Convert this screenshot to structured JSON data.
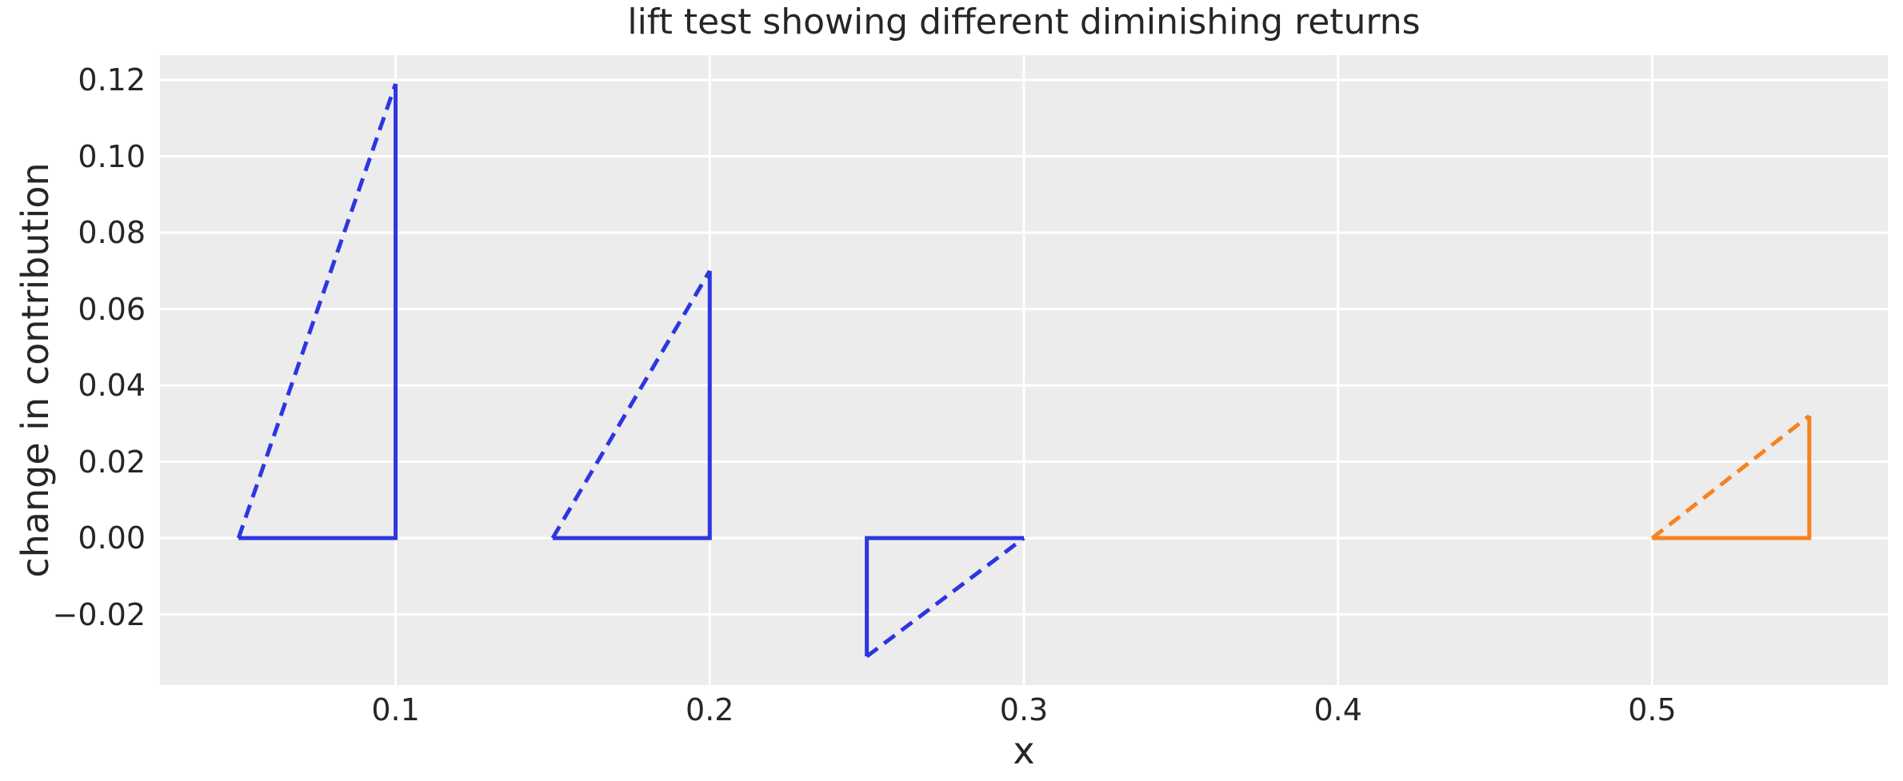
{
  "chart_data": {
    "type": "line",
    "title": "lift test showing different diminishing returns",
    "xlabel": "x",
    "ylabel": "change in contribution",
    "xlim": [
      0.025,
      0.575
    ],
    "ylim": [
      -0.0385,
      0.1265
    ],
    "x_ticks": [
      0.1,
      0.2,
      0.3,
      0.4,
      0.5
    ],
    "x_tick_labels": [
      "0.1",
      "0.2",
      "0.3",
      "0.4",
      "0.5"
    ],
    "y_ticks": [
      -0.02,
      0.0,
      0.02,
      0.04,
      0.06,
      0.08,
      0.1,
      0.12
    ],
    "y_tick_labels": [
      "−0.02",
      "0.00",
      "0.02",
      "0.04",
      "0.06",
      "0.08",
      "0.10",
      "0.12"
    ],
    "grid": true,
    "legend": "none",
    "plot_background": "#ececec",
    "grid_color": "#ffffff",
    "text_color": "#262626",
    "line_width": 5,
    "triangles": [
      {
        "name": "lift-triangle-1",
        "color": "#2e36e0",
        "x_start": 0.05,
        "x_end": 0.1,
        "change": 0.119,
        "vertical_side": "end"
      },
      {
        "name": "lift-triangle-2",
        "color": "#2e36e0",
        "x_start": 0.15,
        "x_end": 0.2,
        "change": 0.07,
        "vertical_side": "end"
      },
      {
        "name": "lift-triangle-3",
        "color": "#2e36e0",
        "x_start": 0.25,
        "x_end": 0.3,
        "change": -0.031,
        "vertical_side": "start"
      },
      {
        "name": "lift-triangle-4",
        "color": "#f8821e",
        "x_start": 0.5,
        "x_end": 0.55,
        "change": 0.032,
        "vertical_side": "end"
      }
    ]
  }
}
